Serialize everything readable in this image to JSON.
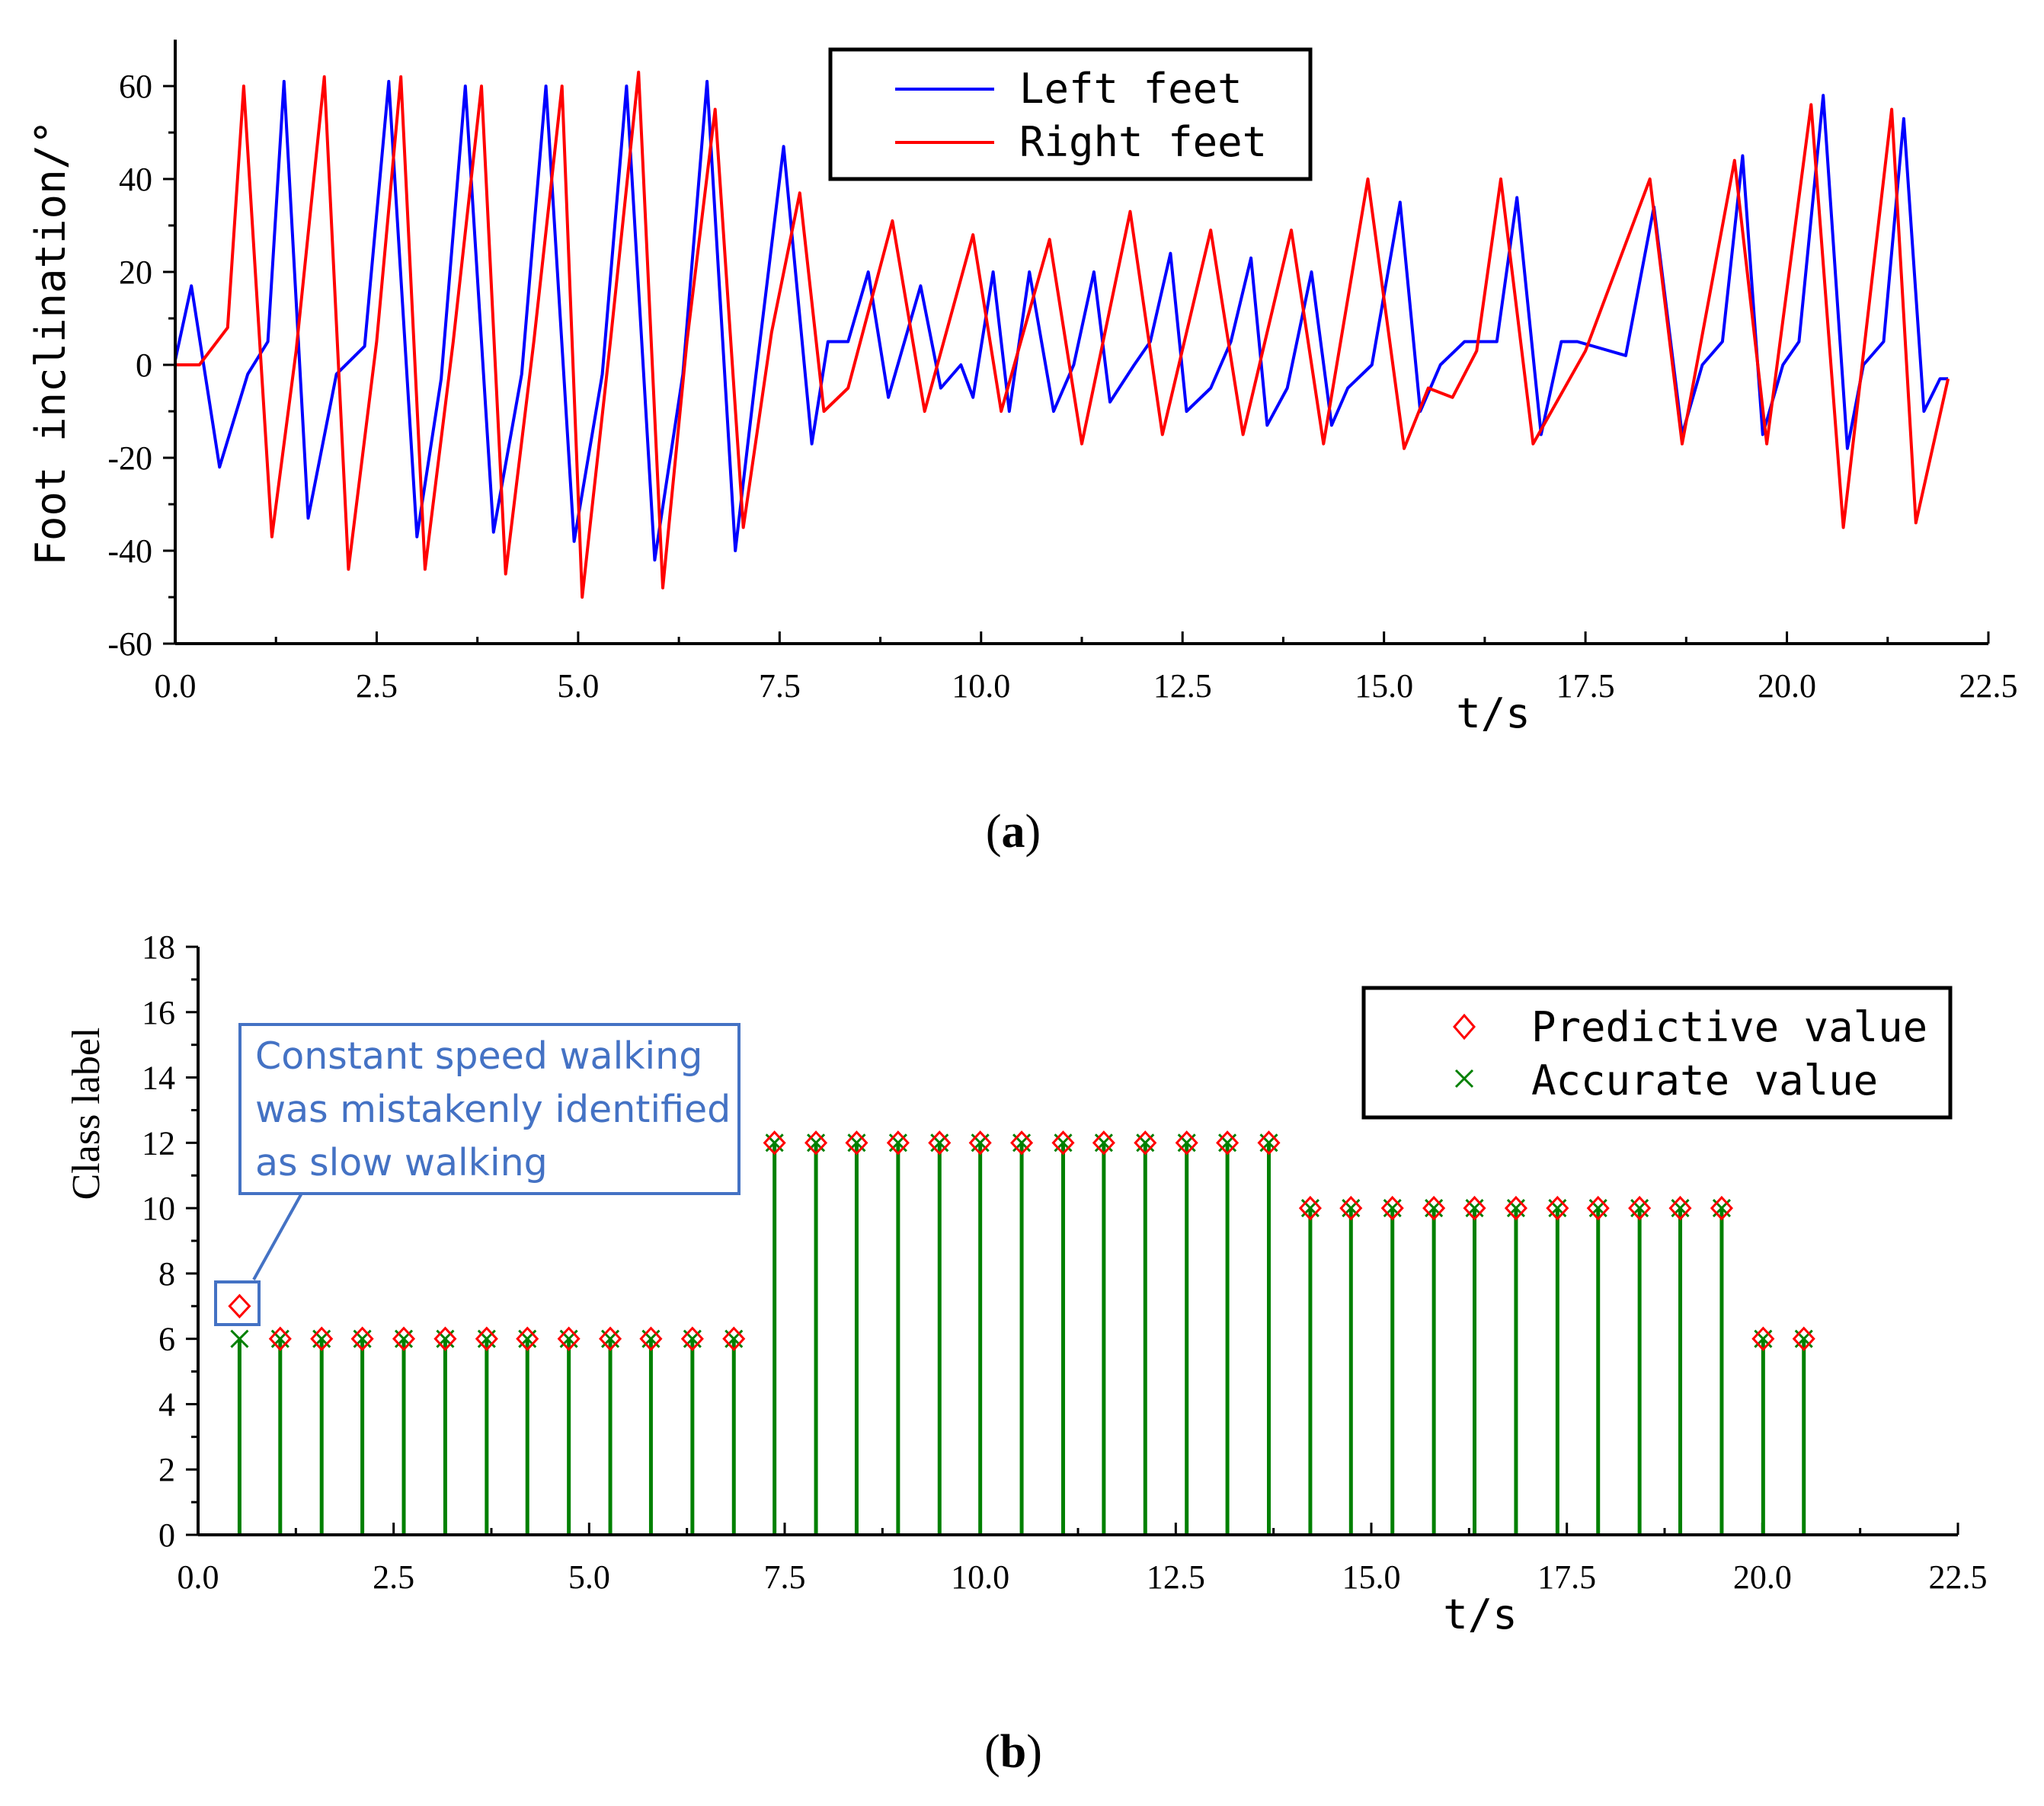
{
  "chart_data": [
    {
      "type": "line",
      "panel_label": "a",
      "xlabel": "t/s",
      "ylabel": "Foot inclination/°",
      "xlim": [
        0,
        22.5
      ],
      "ylim": [
        -60,
        70
      ],
      "xticks": [
        "0.0",
        "2.5",
        "5.0",
        "7.5",
        "10.0",
        "12.5",
        "15.0",
        "17.5",
        "20.0",
        "22.5"
      ],
      "yticks": [
        "-60",
        "-40",
        "-20",
        "0",
        "20",
        "40",
        "60"
      ],
      "legend": {
        "position": "top-right"
      },
      "series": [
        {
          "name": "Left feet",
          "color": "#0000FF",
          "x": [
            0.0,
            0.2,
            0.55,
            0.9,
            1.15,
            1.35,
            1.65,
            2.0,
            2.35,
            2.65,
            3.0,
            3.3,
            3.6,
            3.95,
            4.3,
            4.6,
            4.95,
            5.3,
            5.6,
            5.95,
            6.3,
            6.6,
            6.95,
            7.2,
            7.55,
            7.9,
            8.1,
            8.35,
            8.6,
            8.85,
            9.25,
            9.5,
            9.75,
            9.9,
            10.15,
            10.35,
            10.6,
            10.9,
            11.15,
            11.4,
            11.6,
            11.9,
            12.1,
            12.35,
            12.55,
            12.85,
            13.1,
            13.35,
            13.55,
            13.8,
            14.1,
            14.35,
            14.55,
            14.85,
            15.2,
            15.45,
            15.7,
            16.0,
            16.4,
            16.65,
            16.95,
            17.2,
            17.4,
            18.0,
            18.35,
            18.7,
            18.95,
            19.2,
            19.45,
            19.7,
            19.95,
            20.15,
            20.45,
            20.75,
            20.95,
            21.2,
            21.45,
            21.7,
            21.9,
            22.0
          ],
          "values": [
            1,
            17,
            -22,
            -2,
            5,
            61,
            -33,
            -2,
            4,
            61,
            -37,
            -3,
            60,
            -36,
            -2,
            60,
            -38,
            -2,
            60,
            -42,
            -2,
            61,
            -40,
            -3,
            47,
            -17,
            5,
            5,
            20,
            -7,
            17,
            -5,
            0,
            -7,
            20,
            -10,
            20,
            -10,
            0,
            20,
            -8,
            0,
            5,
            24,
            -10,
            -5,
            5,
            23,
            -13,
            -5,
            20,
            -13,
            -5,
            0,
            35,
            -10,
            0,
            5,
            5,
            36,
            -15,
            5,
            5,
            2,
            34,
            -15,
            0,
            5,
            45,
            -15,
            0,
            5,
            58,
            -18,
            0,
            5,
            53,
            -10,
            -3,
            -3
          ]
        },
        {
          "name": "Right feet",
          "color": "#FF0000",
          "x": [
            0.0,
            0.3,
            0.65,
            0.85,
            1.2,
            1.5,
            1.85,
            2.15,
            2.5,
            2.8,
            3.1,
            3.45,
            3.8,
            4.1,
            4.45,
            4.8,
            5.05,
            5.4,
            5.75,
            6.05,
            6.35,
            6.7,
            7.05,
            7.4,
            7.75,
            8.05,
            8.35,
            8.9,
            9.3,
            9.9,
            10.25,
            10.85,
            11.25,
            11.85,
            12.25,
            12.85,
            13.25,
            13.85,
            14.25,
            14.8,
            15.25,
            15.55,
            15.85,
            16.15,
            16.45,
            16.85,
            17.5,
            18.3,
            18.7,
            19.35,
            19.75,
            20.3,
            20.7,
            21.3,
            21.6,
            22.0
          ],
          "values": [
            0,
            0,
            8,
            60,
            -37,
            3,
            62,
            -44,
            5,
            62,
            -44,
            5,
            60,
            -45,
            5,
            60,
            -50,
            5,
            63,
            -48,
            5,
            55,
            -35,
            7,
            37,
            -10,
            -5,
            31,
            -10,
            28,
            -10,
            27,
            -17,
            33,
            -15,
            29,
            -15,
            29,
            -17,
            40,
            -18,
            -5,
            -7,
            3,
            40,
            -17,
            3,
            40,
            -17,
            44,
            -17,
            56,
            -35,
            55,
            -34,
            -3
          ]
        }
      ]
    },
    {
      "type": "scatter",
      "panel_label": "b",
      "xlabel": "t/s",
      "ylabel": "Class label",
      "xlim": [
        0,
        22.5
      ],
      "ylim": [
        0,
        18
      ],
      "xticks": [
        "0.0",
        "2.5",
        "5.0",
        "7.5",
        "10.0",
        "12.5",
        "15.0",
        "17.5",
        "20.0",
        "22.5"
      ],
      "yticks": [
        "0",
        "2",
        "4",
        "6",
        "8",
        "10",
        "12",
        "14",
        "16",
        "18"
      ],
      "legend": {
        "position": "top-right"
      },
      "x": [
        0.53,
        1.05,
        1.58,
        2.1,
        2.63,
        3.16,
        3.69,
        4.21,
        4.74,
        5.27,
        5.79,
        6.32,
        6.85,
        7.37,
        7.9,
        8.42,
        8.95,
        9.48,
        10.0,
        10.53,
        11.06,
        11.58,
        12.11,
        12.64,
        13.16,
        13.69,
        14.22,
        14.74,
        15.27,
        15.8,
        16.32,
        16.85,
        17.38,
        17.9,
        18.43,
        18.95,
        19.48,
        20.01,
        20.53
      ],
      "series": [
        {
          "name": "Predictive value",
          "color": "#FF0000",
          "marker": "diamond",
          "values": [
            7,
            6,
            6,
            6,
            6,
            6,
            6,
            6,
            6,
            6,
            6,
            6,
            6,
            12,
            12,
            12,
            12,
            12,
            12,
            12,
            12,
            12,
            12,
            12,
            12,
            12,
            10,
            10,
            10,
            10,
            10,
            10,
            10,
            10,
            10,
            10,
            10,
            6,
            6
          ]
        },
        {
          "name": "Accurate value",
          "color": "#008000",
          "marker": "x",
          "values": [
            6,
            6,
            6,
            6,
            6,
            6,
            6,
            6,
            6,
            6,
            6,
            6,
            6,
            12,
            12,
            12,
            12,
            12,
            12,
            12,
            12,
            12,
            12,
            12,
            12,
            12,
            10,
            10,
            10,
            10,
            10,
            10,
            10,
            10,
            10,
            10,
            10,
            6,
            6
          ]
        }
      ],
      "annotation": {
        "lines": [
          "Constant speed walking",
          "was mistakenly identified",
          "as slow walking"
        ],
        "color": "#4472C4",
        "target_index": 0
      }
    }
  ]
}
